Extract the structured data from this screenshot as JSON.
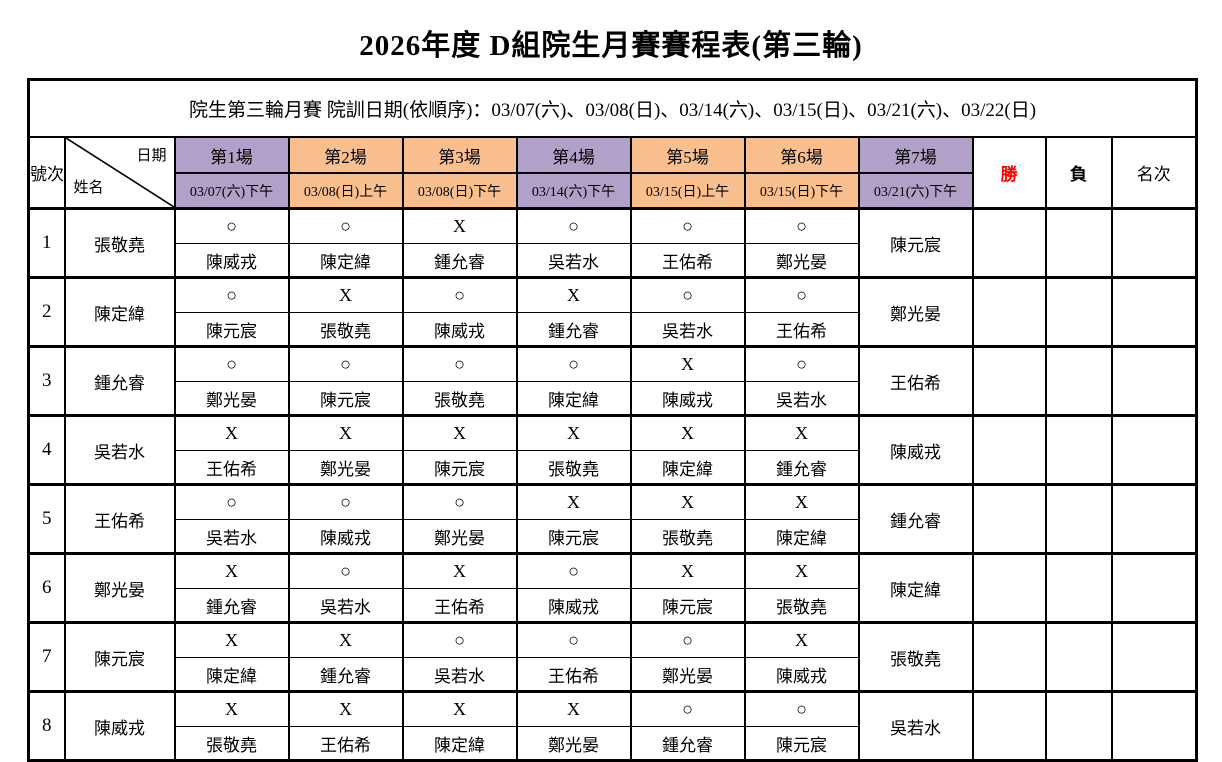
{
  "page": {
    "title": "2026年度 D組院生月賽賽程表(第三輪)"
  },
  "info_row": "院生第三輪月賽 院訓日期(依順序)：03/07(六)、03/08(日)、03/14(六)、03/15(日)、03/21(六)、03/22(日)",
  "header": {
    "row_no_label": "號次",
    "date_label": "日期",
    "name_label": "姓名",
    "win_label": "勝",
    "loss_label": "負",
    "rank_label": "名次",
    "rounds": [
      {
        "label": "第1場",
        "date": "03/07(六)下午",
        "color": "#B1A0C7"
      },
      {
        "label": "第2場",
        "date": "03/08(日)上午",
        "color": "#FABF8F"
      },
      {
        "label": "第3場",
        "date": "03/08(日)下午",
        "color": "#FABF8F"
      },
      {
        "label": "第4場",
        "date": "03/14(六)下午",
        "color": "#B1A0C7"
      },
      {
        "label": "第5場",
        "date": "03/15(日)上午",
        "color": "#FABF8F"
      },
      {
        "label": "第6場",
        "date": "03/15(日)下午",
        "color": "#FABF8F"
      },
      {
        "label": "第7場",
        "date": "03/21(六)下午",
        "color": "#B1A0C7"
      }
    ]
  },
  "colors": {
    "win_label_color": "#FF0000",
    "purple": "#B1A0C7",
    "orange": "#FABF8F",
    "border": "#000000"
  },
  "symbols": {
    "win": "○",
    "loss": "X"
  },
  "players": [
    {
      "no": "1",
      "name": "張敬堯",
      "wins": "",
      "losses": "",
      "rank": "",
      "matches": [
        {
          "result": "○",
          "opponent": "陳威戎"
        },
        {
          "result": "○",
          "opponent": "陳定緯"
        },
        {
          "result": "X",
          "opponent": "鍾允睿"
        },
        {
          "result": "○",
          "opponent": "吳若水"
        },
        {
          "result": "○",
          "opponent": "王佑希"
        },
        {
          "result": "○",
          "opponent": "鄭光晏"
        },
        {
          "result": "",
          "opponent": "陳元宸"
        }
      ]
    },
    {
      "no": "2",
      "name": "陳定緯",
      "wins": "",
      "losses": "",
      "rank": "",
      "matches": [
        {
          "result": "○",
          "opponent": "陳元宸"
        },
        {
          "result": "X",
          "opponent": "張敬堯"
        },
        {
          "result": "○",
          "opponent": "陳威戎"
        },
        {
          "result": "X",
          "opponent": "鍾允睿"
        },
        {
          "result": "○",
          "opponent": "吳若水"
        },
        {
          "result": "○",
          "opponent": "王佑希"
        },
        {
          "result": "",
          "opponent": "鄭光晏"
        }
      ]
    },
    {
      "no": "3",
      "name": "鍾允睿",
      "wins": "",
      "losses": "",
      "rank": "",
      "matches": [
        {
          "result": "○",
          "opponent": "鄭光晏"
        },
        {
          "result": "○",
          "opponent": "陳元宸"
        },
        {
          "result": "○",
          "opponent": "張敬堯"
        },
        {
          "result": "○",
          "opponent": "陳定緯"
        },
        {
          "result": "X",
          "opponent": "陳威戎"
        },
        {
          "result": "○",
          "opponent": "吳若水"
        },
        {
          "result": "",
          "opponent": "王佑希"
        }
      ]
    },
    {
      "no": "4",
      "name": "吳若水",
      "wins": "",
      "losses": "",
      "rank": "",
      "matches": [
        {
          "result": "X",
          "opponent": "王佑希"
        },
        {
          "result": "X",
          "opponent": "鄭光晏"
        },
        {
          "result": "X",
          "opponent": "陳元宸"
        },
        {
          "result": "X",
          "opponent": "張敬堯"
        },
        {
          "result": "X",
          "opponent": "陳定緯"
        },
        {
          "result": "X",
          "opponent": "鍾允睿"
        },
        {
          "result": "",
          "opponent": "陳威戎"
        }
      ]
    },
    {
      "no": "5",
      "name": "王佑希",
      "wins": "",
      "losses": "",
      "rank": "",
      "matches": [
        {
          "result": "○",
          "opponent": "吳若水"
        },
        {
          "result": "○",
          "opponent": "陳威戎"
        },
        {
          "result": "○",
          "opponent": "鄭光晏"
        },
        {
          "result": "X",
          "opponent": "陳元宸"
        },
        {
          "result": "X",
          "opponent": "張敬堯"
        },
        {
          "result": "X",
          "opponent": "陳定緯"
        },
        {
          "result": "",
          "opponent": "鍾允睿"
        }
      ]
    },
    {
      "no": "6",
      "name": "鄭光晏",
      "wins": "",
      "losses": "",
      "rank": "",
      "matches": [
        {
          "result": "X",
          "opponent": "鍾允睿"
        },
        {
          "result": "○",
          "opponent": "吳若水"
        },
        {
          "result": "X",
          "opponent": "王佑希"
        },
        {
          "result": "○",
          "opponent": "陳威戎"
        },
        {
          "result": "X",
          "opponent": "陳元宸"
        },
        {
          "result": "X",
          "opponent": "張敬堯"
        },
        {
          "result": "",
          "opponent": "陳定緯"
        }
      ]
    },
    {
      "no": "7",
      "name": "陳元宸",
      "wins": "",
      "losses": "",
      "rank": "",
      "matches": [
        {
          "result": "X",
          "opponent": "陳定緯"
        },
        {
          "result": "X",
          "opponent": "鍾允睿"
        },
        {
          "result": "○",
          "opponent": "吳若水"
        },
        {
          "result": "○",
          "opponent": "王佑希"
        },
        {
          "result": "○",
          "opponent": "鄭光晏"
        },
        {
          "result": "X",
          "opponent": "陳威戎"
        },
        {
          "result": "",
          "opponent": "張敬堯"
        }
      ]
    },
    {
      "no": "8",
      "name": "陳威戎",
      "wins": "",
      "losses": "",
      "rank": "",
      "matches": [
        {
          "result": "X",
          "opponent": "張敬堯"
        },
        {
          "result": "X",
          "opponent": "王佑希"
        },
        {
          "result": "X",
          "opponent": "陳定緯"
        },
        {
          "result": "X",
          "opponent": "鄭光晏"
        },
        {
          "result": "○",
          "opponent": "鍾允睿"
        },
        {
          "result": "○",
          "opponent": "陳元宸"
        },
        {
          "result": "",
          "opponent": "吳若水"
        }
      ]
    }
  ]
}
